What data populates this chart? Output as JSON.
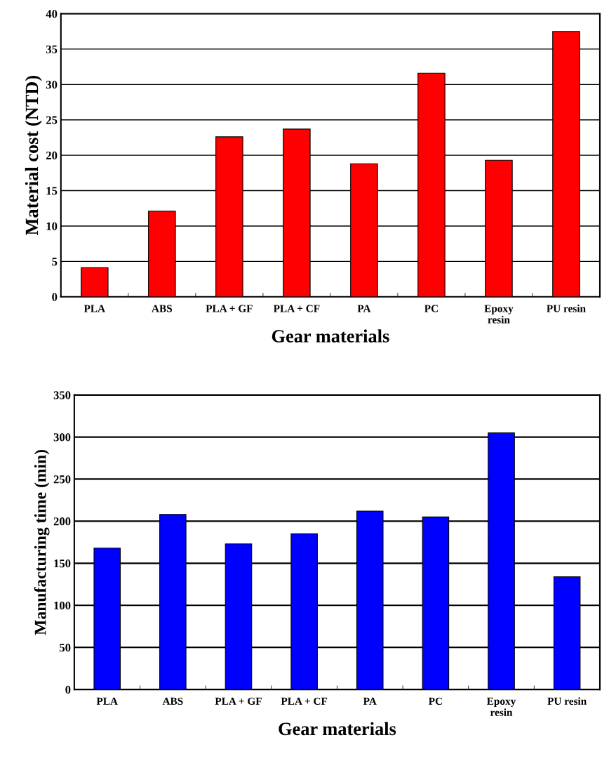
{
  "chart_data": [
    {
      "type": "bar",
      "xlabel": "Gear materials",
      "ylabel": "Material cost (NTD)",
      "categories": [
        "PLA",
        "ABS",
        "PLA + GF",
        "PLA + CF",
        "PA",
        "PC",
        "Epoxy\nresin",
        "PU resin"
      ],
      "values": [
        4.1,
        12.1,
        22.6,
        23.7,
        18.8,
        31.6,
        19.3,
        37.5
      ],
      "color": "#ff0000",
      "ylim": [
        0,
        40
      ],
      "yticks": [
        0,
        5,
        10,
        15,
        20,
        25,
        30,
        35,
        40
      ],
      "grid": "y",
      "legend": false
    },
    {
      "type": "bar",
      "xlabel": "Gear materials",
      "ylabel": "Manufacturing time (min)",
      "categories": [
        "PLA",
        "ABS",
        "PLA + GF",
        "PLA + CF",
        "PA",
        "PC",
        "Epoxy\nresin",
        "PU resin"
      ],
      "values": [
        168,
        208,
        173,
        185,
        212,
        205,
        305,
        134
      ],
      "color": "#0000ff",
      "ylim": [
        0,
        350
      ],
      "yticks": [
        0,
        50,
        100,
        150,
        200,
        250,
        300,
        350
      ],
      "grid": "y",
      "legend": false
    }
  ]
}
